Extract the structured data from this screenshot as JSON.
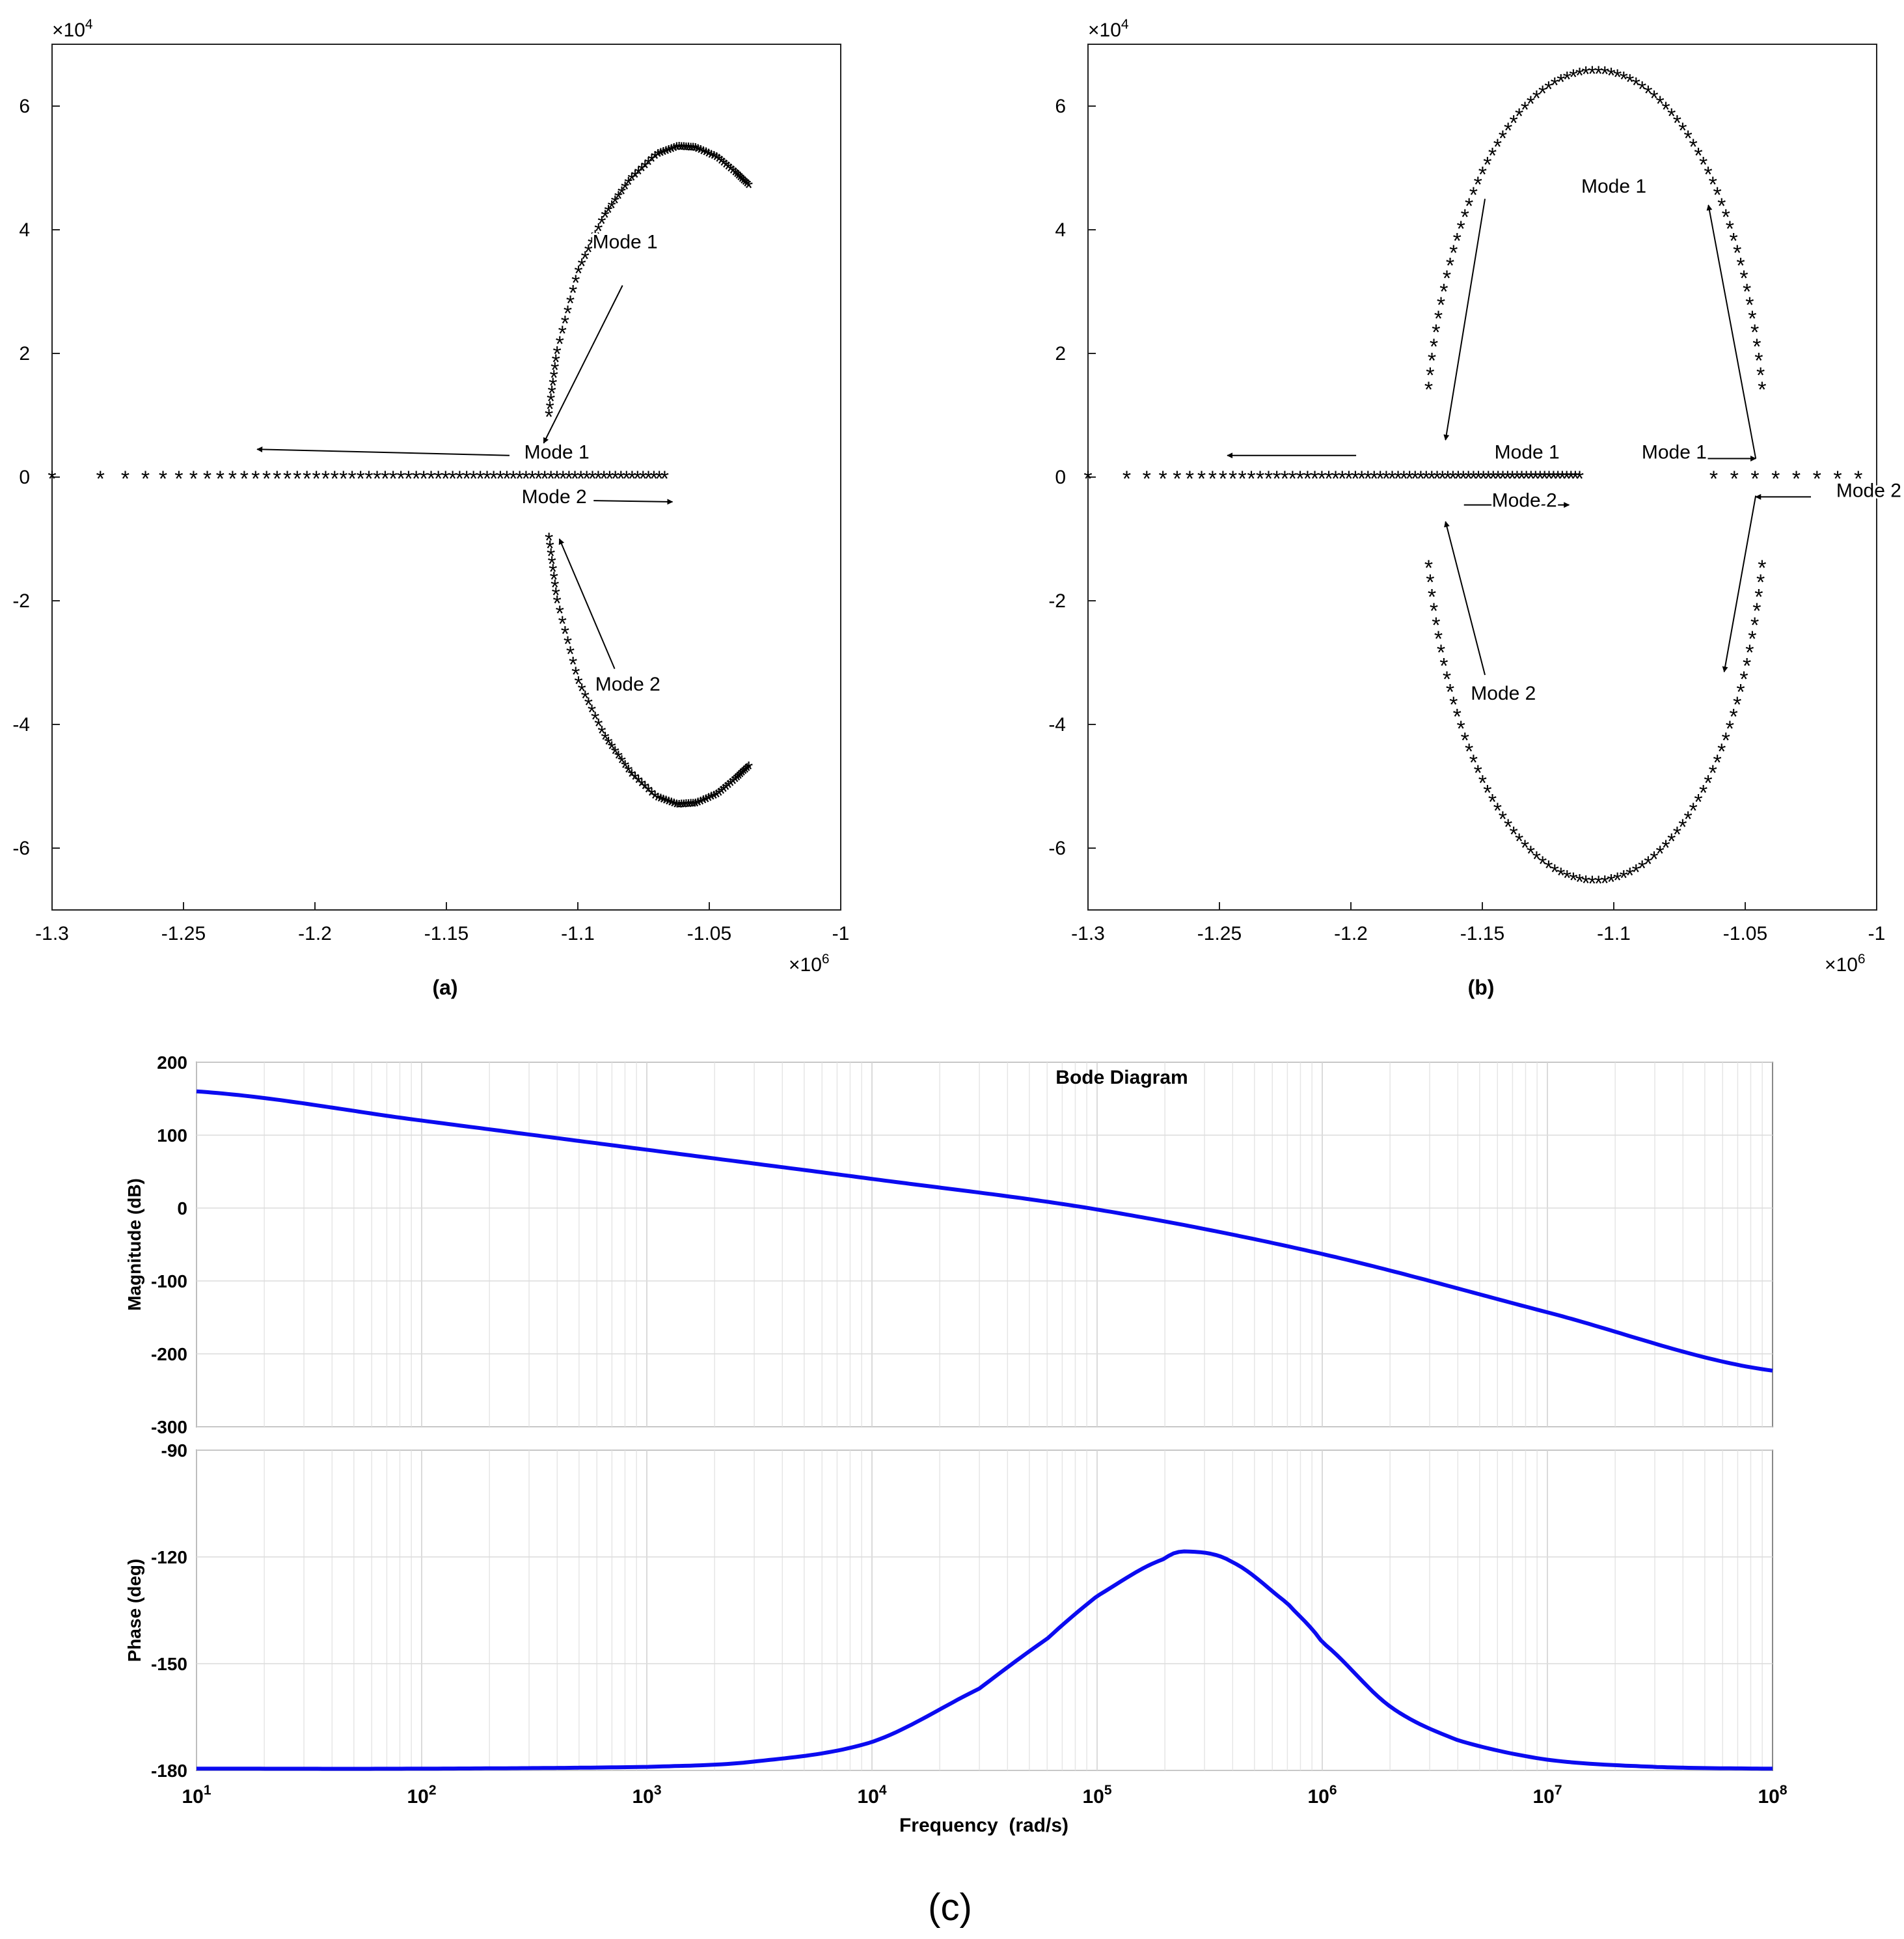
{
  "chart_data": [
    {
      "type": "scatter",
      "panel_label": "(a)",
      "marker": "*",
      "marker_color": "#000000",
      "xlim": [
        -1300000,
        -1000000
      ],
      "ylim": [
        -70000,
        70000
      ],
      "x_ticks": [
        -1.3,
        -1.25,
        -1.2,
        -1.15,
        -1.1,
        -1.05,
        -1
      ],
      "y_ticks": [
        -6,
        -4,
        -2,
        0,
        2,
        4,
        6
      ],
      "x_exponent": "×10",
      "x_exponent_power": "6",
      "y_exponent": "×10",
      "y_exponent_power": "4",
      "series": [
        {
          "shape": "arc",
          "x": [
            -1111000,
            -1108000,
            -1100000,
            -1090000,
            -1080000,
            -1070000,
            -1062000,
            -1055000,
            -1047000,
            -1040000,
            -1035000
          ],
          "y": [
            10000,
            20000,
            33000,
            42000,
            48000,
            52000,
            53200,
            53000,
            51500,
            49000,
            47000
          ],
          "mirrored": true
        },
        {
          "shape": "real_axis",
          "x": [
            -1300000,
            -1067000
          ],
          "y": [
            0,
            0
          ]
        }
      ],
      "annotations": [
        {
          "text": "Mode 1",
          "text_xy": [
            -1.082,
            3.7
          ],
          "arrow_from": [
            -1.083,
            3.1
          ],
          "arrow_to": [
            -1.113,
            0.55
          ]
        },
        {
          "text": "Mode 1",
          "text_xy": [
            -1.108,
            0.3
          ],
          "arrow_from": [
            -1.126,
            0.35
          ],
          "arrow_to": [
            -1.222,
            0.45
          ]
        },
        {
          "text": "Mode 2",
          "text_xy": [
            -1.109,
            -0.42
          ],
          "arrow_from": [
            -1.094,
            -0.38
          ],
          "arrow_to": [
            -1.064,
            -0.4
          ]
        },
        {
          "text": "Mode 2",
          "text_xy": [
            -1.081,
            -3.45
          ],
          "arrow_from": [
            -1.086,
            -3.1
          ],
          "arrow_to": [
            -1.107,
            -1.0
          ]
        }
      ]
    },
    {
      "type": "scatter",
      "panel_label": "(b)",
      "marker": "*",
      "marker_color": "#000000",
      "xlim": [
        -1300000,
        -1000000
      ],
      "ylim": [
        -70000,
        70000
      ],
      "x_ticks": [
        -1.3,
        -1.25,
        -1.2,
        -1.15,
        -1.1,
        -1.05,
        -1
      ],
      "y_ticks": [
        -6,
        -4,
        -2,
        0,
        2,
        4,
        6
      ],
      "x_exponent": "×10",
      "x_exponent_power": "6",
      "y_exponent": "×10",
      "y_exponent_power": "4",
      "series": [
        {
          "shape": "ellipse",
          "center_x": -1107000,
          "half_width_x": 65000,
          "half_height_y": 65500,
          "y_cut": 14000
        },
        {
          "shape": "real_axis",
          "x": [
            -1300000,
            -1113000
          ],
          "y": [
            0,
            0
          ]
        },
        {
          "shape": "real_axis_right",
          "x": [
            -1062000,
            -1007000
          ],
          "y": [
            0,
            0
          ]
        }
      ],
      "annotations": [
        {
          "text": "Mode 1",
          "text_xy": [
            -1.1,
            4.6
          ],
          "arrow_from": [
            -1.149,
            4.5
          ],
          "arrow_to": [
            -1.164,
            0.6
          ]
        },
        {
          "text": "Mode 1",
          "text_xy": [
            -1.133,
            0.3
          ],
          "arrow_from": [
            -1.198,
            0.35
          ],
          "arrow_to": [
            -1.247,
            0.35
          ]
        },
        {
          "text": "Mode 2",
          "text_xy": [
            -1.134,
            -0.48
          ],
          "arrow_from": [
            -1.157,
            -0.45
          ],
          "arrow_to": [
            -1.117,
            -0.45
          ]
        },
        {
          "text": "Mode 2",
          "text_xy": [
            -1.142,
            -3.6
          ],
          "arrow_from": [
            -1.149,
            -3.2
          ],
          "arrow_to": [
            -1.164,
            -0.72
          ]
        },
        {
          "text": "Mode 1",
          "text_xy": [
            -1.077,
            0.3
          ],
          "arrow_from": [
            -1.066,
            0.3
          ],
          "arrow_to": [
            -1.046,
            0.3
          ]
        },
        {
          "text": "Mode 2",
          "text_xy": [
            -1.003,
            -0.32
          ],
          "arrow_from": [
            -1.025,
            -0.32
          ],
          "arrow_to": [
            -1.046,
            -0.32
          ]
        },
        {
          "text": "",
          "arrow_from": [
            -1.046,
            0.3
          ],
          "arrow_to": [
            -1.064,
            4.4
          ]
        },
        {
          "text": "",
          "arrow_from": [
            -1.046,
            -0.3
          ],
          "arrow_to": [
            -1.058,
            -3.15
          ]
        }
      ]
    },
    {
      "type": "line",
      "panel_label": "(c)",
      "title": "Bode Diagram",
      "xlabel": "Frequency  (rad/s)",
      "x_scale": "log",
      "xlim": [
        10,
        100000000
      ],
      "x_tick_base": "10",
      "x_tick_powers": [
        "1",
        "2",
        "3",
        "4",
        "5",
        "6",
        "7",
        "8"
      ],
      "grid": true,
      "line_color": "#0b0bf0",
      "subplots": [
        {
          "ylabel": "Magnitude (dB)",
          "ylim": [
            -300,
            200
          ],
          "y_ticks": [
            -300,
            -200,
            -100,
            0,
            100,
            200
          ],
          "series": [
            {
              "x": [
                10,
                100,
                1000,
                10000,
                100000,
                1000000,
                10000000,
                100000000
              ],
              "y": [
                160,
                120,
                80,
                40,
                -2,
                -63,
                -143,
                -223
              ]
            }
          ]
        },
        {
          "ylabel": "Phase (deg)",
          "ylim": [
            -180,
            -90
          ],
          "y_ticks": [
            -180,
            -150,
            -120,
            -90
          ],
          "series": [
            {
              "x": [
                10,
                100,
                1000,
                3000,
                10000,
                30000,
                60000,
                100000,
                200000,
                260000,
                400000,
                700000,
                1000000,
                2000000,
                4000000,
                10000000,
                30000000,
                100000000
              ],
              "y": [
                -179.5,
                -179.5,
                -179,
                -177.5,
                -172,
                -157,
                -143,
                -131,
                -120.5,
                -118.5,
                -121.5,
                -133,
                -144,
                -162,
                -171.5,
                -177,
                -179,
                -179.5
              ]
            }
          ]
        }
      ]
    }
  ]
}
